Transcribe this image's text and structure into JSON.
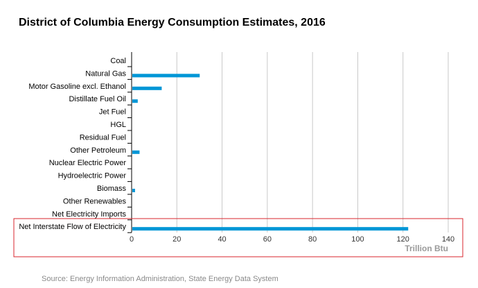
{
  "chart_data": {
    "type": "bar",
    "orientation": "horizontal",
    "title": "District of Columbia Energy Consumption Estimates, 2016",
    "categories": [
      "Coal",
      "Natural Gas",
      "Motor Gasoline excl. Ethanol",
      "Distillate Fuel Oil",
      "Jet Fuel",
      "HGL",
      "Residual Fuel",
      "Other Petroleum",
      "Nuclear Electric Power",
      "Hydroelectric Power",
      "Biomass",
      "Other Renewables",
      "Net Electricity Imports",
      "Net Interstate Flow of Electricity"
    ],
    "values": [
      0,
      29.8,
      13,
      2.4,
      0,
      0,
      0,
      3.2,
      0,
      0,
      1.2,
      0,
      0,
      122
    ],
    "xlabel": "Trillion Btu",
    "xlim": [
      0,
      140
    ],
    "xticks": [
      0,
      20,
      40,
      60,
      80,
      100,
      120,
      140
    ],
    "grid": true,
    "bar_color": "#0096d6",
    "highlight_category": "Net Interstate Flow of Electricity",
    "highlight_color": "#d9262c",
    "source": "Source: Energy Information Administration, State Energy Data System"
  }
}
